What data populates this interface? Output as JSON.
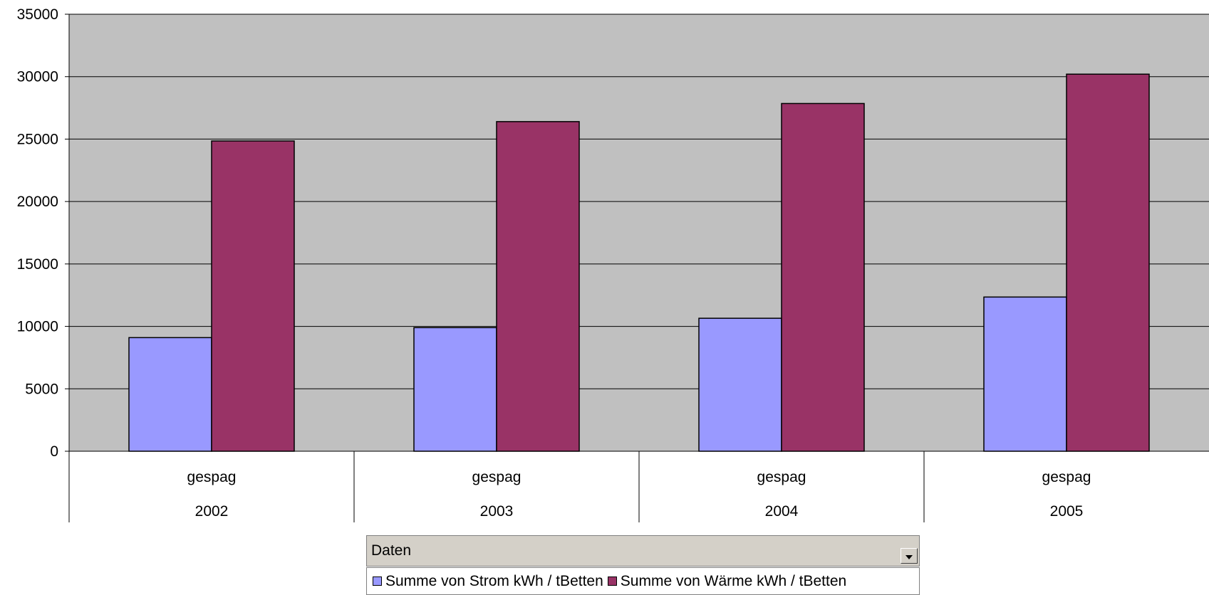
{
  "chart_data": {
    "type": "bar",
    "categories": [
      {
        "label": "gespag",
        "year": "2002"
      },
      {
        "label": "gespag",
        "year": "2003"
      },
      {
        "label": "gespag",
        "year": "2004"
      },
      {
        "label": "gespag",
        "year": "2005"
      }
    ],
    "series": [
      {
        "name": "Summe von Strom kWh / tBetten",
        "color": "#9999ff",
        "values": [
          9100,
          9900,
          10650,
          12350
        ]
      },
      {
        "name": "Summe von Wärme kWh / tBetten",
        "color": "#993366",
        "values": [
          24850,
          26400,
          27850,
          30200
        ]
      }
    ],
    "ylim": [
      0,
      35000
    ],
    "yticks": [
      "0",
      "5000",
      "10000",
      "15000",
      "20000",
      "25000",
      "30000",
      "35000"
    ],
    "grid": true,
    "plot_background": "#c0c0c0",
    "legend_placement": "bottom-center"
  },
  "data_field": {
    "label": "Daten",
    "dropdown_icon": "chevron-down-icon"
  }
}
